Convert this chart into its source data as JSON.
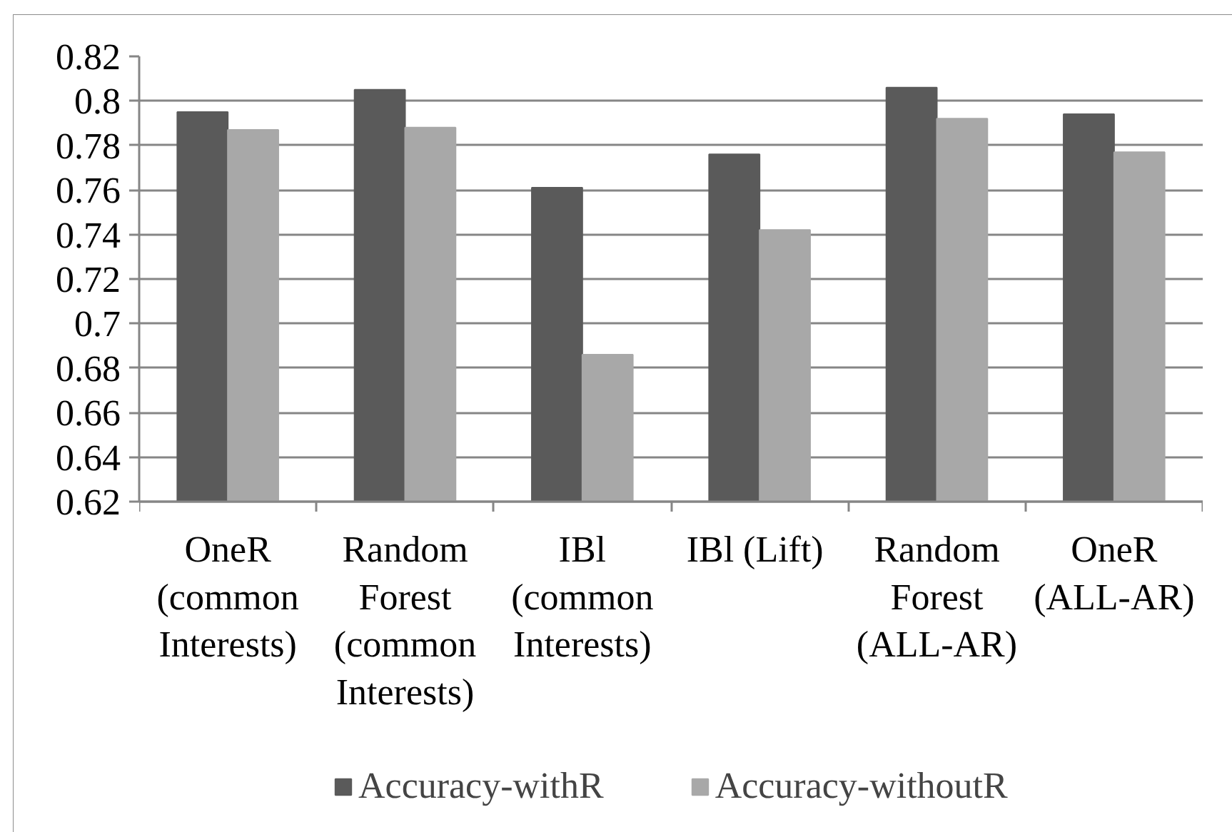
{
  "chart_data": {
    "type": "bar",
    "categories": [
      "OneR (common Interests)",
      "Random Forest (common Interests)",
      "IBl (common Interests)",
      "IBl  (Lift)",
      "Random Forest (ALL-AR)",
      "OneR (ALL-AR)"
    ],
    "series": [
      {
        "name": "Accuracy-withR",
        "color": "#5a5a5a",
        "values": [
          0.795,
          0.805,
          0.761,
          0.776,
          0.806,
          0.794
        ]
      },
      {
        "name": "Accuracy-withoutR",
        "color": "#a8a8a8",
        "values": [
          0.787,
          0.788,
          0.686,
          0.742,
          0.792,
          0.777
        ]
      }
    ],
    "ylim": [
      0.62,
      0.82
    ],
    "yticks": [
      0.62,
      0.64,
      0.66,
      0.68,
      0.7,
      0.72,
      0.74,
      0.76,
      0.78,
      0.8,
      0.82
    ],
    "grid": "y",
    "legend": "bottom"
  }
}
